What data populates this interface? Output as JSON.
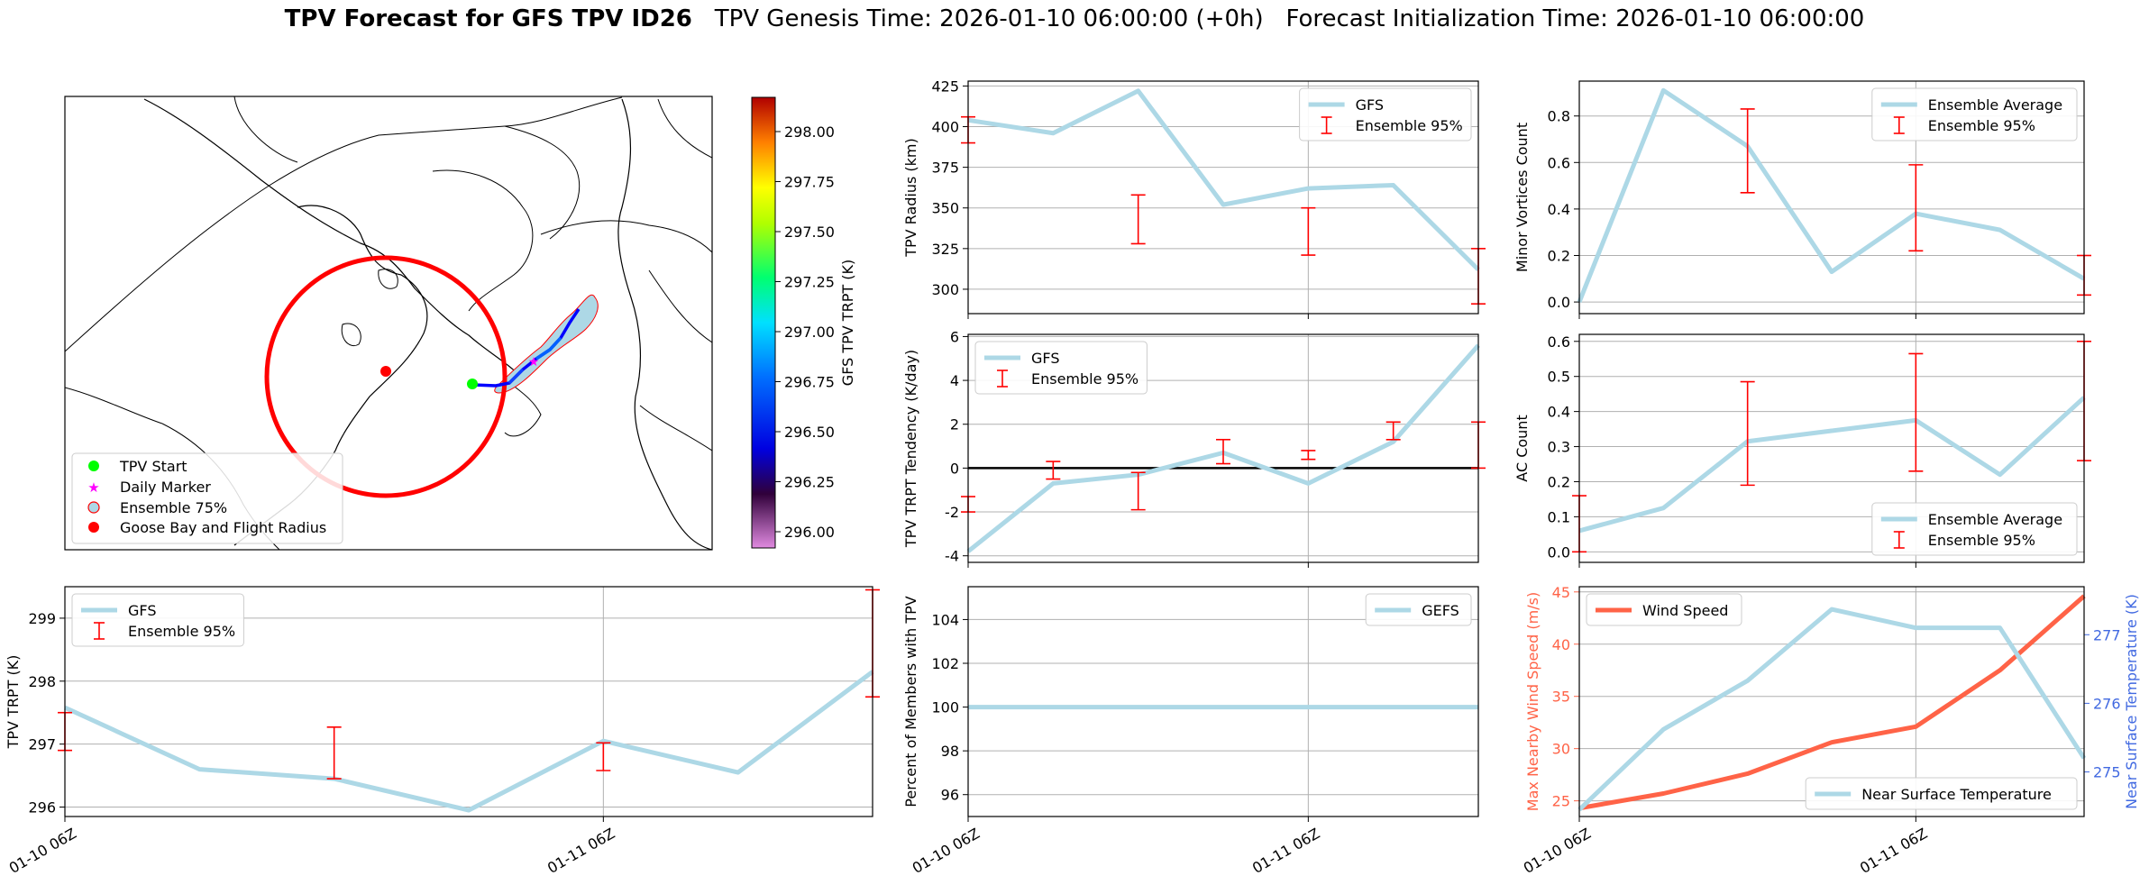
{
  "header": {
    "title_bold": "TPV Forecast for GFS TPV ID26",
    "title_rest": "TPV Genesis Time: 2026-01-10 06:00:00 (+0h)   Forecast Initialization Time: 2026-01-10 06:00:00"
  },
  "colors": {
    "main_line": "#add8e6",
    "errorbar": "#ff0000",
    "wind": "#ff6347",
    "temp_axis": "#4169e1",
    "track": "#0000ff",
    "start": "#00ff00",
    "daily_marker": "#ff00ff",
    "goose_bay": "#ff0000"
  },
  "map": {
    "legend": [
      "TPV Start",
      "Daily Marker",
      "Ensemble 75%",
      "Goose Bay and Flight Radius"
    ],
    "colorbar_label": "GFS TPV TRPT (K)",
    "colorbar_ticks": [
      "298.00",
      "297.75",
      "297.50",
      "297.25",
      "297.00",
      "296.75",
      "296.50",
      "296.25",
      "296.00"
    ]
  },
  "chart_data": [
    {
      "id": "radius",
      "type": "line",
      "ylabel": "TPV Radius (km)",
      "ylim": [
        285,
        428
      ],
      "yticks": [
        "425",
        "400",
        "375",
        "350",
        "325",
        "300"
      ],
      "ytick_values": [
        425,
        400,
        375,
        350,
        325,
        300
      ],
      "x": [
        "01-10 06Z",
        "01-10 12Z",
        "01-10 18Z",
        "01-11 00Z",
        "01-11 06Z",
        "01-11 12Z",
        "01-11 18Z"
      ],
      "series": [
        {
          "name": "GFS",
          "values": [
            404,
            396,
            422,
            352,
            362,
            364,
            312
          ]
        }
      ],
      "errorbars": [
        {
          "x": 0,
          "lo": 390,
          "hi": 406
        },
        {
          "x": 2,
          "lo": 328,
          "hi": 358
        },
        {
          "x": 4,
          "lo": 321,
          "hi": 350
        },
        {
          "x": 6,
          "lo": 291,
          "hi": 325
        }
      ],
      "legend": [
        "GFS",
        "Ensemble 95%"
      ],
      "legend_pos": "top-right"
    },
    {
      "id": "minor_vortices",
      "type": "line",
      "ylabel": "Minor Vortices Count",
      "ylim": [
        -0.05,
        0.95
      ],
      "yticks": [
        "0.8",
        "0.6",
        "0.4",
        "0.2",
        "0.0"
      ],
      "ytick_values": [
        0.8,
        0.6,
        0.4,
        0.2,
        0.0
      ],
      "x": [
        "01-10 06Z",
        "01-10 12Z",
        "01-10 18Z",
        "01-11 00Z",
        "01-11 06Z",
        "01-11 12Z",
        "01-11 18Z"
      ],
      "series": [
        {
          "name": "Ensemble Average",
          "values": [
            0.0,
            0.91,
            0.67,
            0.13,
            0.38,
            0.31,
            0.1
          ]
        }
      ],
      "errorbars": [
        {
          "x": 2,
          "lo": 0.47,
          "hi": 0.83
        },
        {
          "x": 4,
          "lo": 0.22,
          "hi": 0.59
        },
        {
          "x": 6,
          "lo": 0.03,
          "hi": 0.2
        }
      ],
      "legend": [
        "Ensemble Average",
        "Ensemble 95%"
      ],
      "legend_pos": "top-right"
    },
    {
      "id": "tendency",
      "type": "line",
      "ylabel": "TPV TRPT Tendency (K/day)",
      "ylim": [
        -4.3,
        6.1
      ],
      "yticks": [
        "6",
        "4",
        "2",
        "0",
        "-2",
        "-4"
      ],
      "ytick_values": [
        6,
        4,
        2,
        0,
        -2,
        -4
      ],
      "x": [
        "01-10 06Z",
        "01-10 12Z",
        "01-10 18Z",
        "01-11 00Z",
        "01-11 06Z",
        "01-11 12Z",
        "01-11 18Z"
      ],
      "series": [
        {
          "name": "GFS",
          "values": [
            -3.8,
            -0.7,
            -0.3,
            0.7,
            -0.7,
            1.2,
            5.6
          ]
        }
      ],
      "errorbars": [
        {
          "x": 0,
          "lo": -2.0,
          "hi": -1.3
        },
        {
          "x": 1,
          "lo": -0.5,
          "hi": 0.3
        },
        {
          "x": 2,
          "lo": -1.9,
          "hi": -0.2
        },
        {
          "x": 3,
          "lo": 0.2,
          "hi": 1.3
        },
        {
          "x": 4,
          "lo": 0.4,
          "hi": 0.8
        },
        {
          "x": 5,
          "lo": 1.3,
          "hi": 2.1
        },
        {
          "x": 6,
          "lo": 0.0,
          "hi": 2.1
        }
      ],
      "zero_line": true,
      "legend": [
        "GFS",
        "Ensemble 95%"
      ],
      "legend_pos": "top-left"
    },
    {
      "id": "ac_count",
      "type": "line",
      "ylabel": "AC Count",
      "ylim": [
        -0.03,
        0.62
      ],
      "yticks": [
        "0.6",
        "0.5",
        "0.4",
        "0.3",
        "0.2",
        "0.1",
        "0.0"
      ],
      "ytick_values": [
        0.6,
        0.5,
        0.4,
        0.3,
        0.2,
        0.1,
        0.0
      ],
      "x": [
        "01-10 06Z",
        "01-10 12Z",
        "01-10 18Z",
        "01-11 00Z",
        "01-11 06Z",
        "01-11 12Z",
        "01-11 18Z"
      ],
      "series": [
        {
          "name": "Ensemble Average",
          "values": [
            0.06,
            0.125,
            0.315,
            0.345,
            0.375,
            0.22,
            0.44
          ]
        }
      ],
      "errorbars": [
        {
          "x": 0,
          "lo": 0.0,
          "hi": 0.16
        },
        {
          "x": 2,
          "lo": 0.19,
          "hi": 0.485
        },
        {
          "x": 4,
          "lo": 0.23,
          "hi": 0.565
        },
        {
          "x": 6,
          "lo": 0.26,
          "hi": 0.6
        }
      ],
      "legend": [
        "Ensemble Average",
        "Ensemble 95%"
      ],
      "legend_pos": "bottom-right"
    },
    {
      "id": "trpt",
      "type": "line",
      "ylabel": "TPV TRPT (K)",
      "ylim": [
        295.85,
        299.5
      ],
      "yticks": [
        "299",
        "298",
        "297",
        "296"
      ],
      "ytick_values": [
        299,
        298,
        297,
        296
      ],
      "xticks": [
        "01-10 06Z",
        "01-11 06Z"
      ],
      "x": [
        "01-10 06Z",
        "01-10 12Z",
        "01-10 18Z",
        "01-11 00Z",
        "01-11 06Z",
        "01-11 12Z",
        "01-11 18Z"
      ],
      "series": [
        {
          "name": "GFS",
          "values": [
            297.58,
            296.6,
            296.45,
            295.95,
            297.05,
            296.55,
            298.15
          ]
        }
      ],
      "errorbars": [
        {
          "x": 0,
          "lo": 296.9,
          "hi": 297.5
        },
        {
          "x": 2,
          "lo": 296.45,
          "hi": 297.27
        },
        {
          "x": 4,
          "lo": 296.58,
          "hi": 297.02
        },
        {
          "x": 6,
          "lo": 297.75,
          "hi": 299.45
        }
      ],
      "legend": [
        "GFS",
        "Ensemble 95%"
      ],
      "legend_pos": "top-left"
    },
    {
      "id": "percent_members",
      "type": "line",
      "ylabel": "Percent of Members with TPV",
      "ylim": [
        95,
        105.5
      ],
      "yticks": [
        "104",
        "102",
        "100",
        "98",
        "96"
      ],
      "ytick_values": [
        104,
        102,
        100,
        98,
        96
      ],
      "xticks": [
        "01-10 06Z",
        "01-11 06Z"
      ],
      "x": [
        "01-10 06Z",
        "01-10 12Z",
        "01-10 18Z",
        "01-11 00Z",
        "01-11 06Z",
        "01-11 12Z",
        "01-11 18Z"
      ],
      "series": [
        {
          "name": "GEFS",
          "values": [
            100,
            100,
            100,
            100,
            100,
            100,
            100
          ]
        }
      ],
      "legend": [
        "GEFS"
      ],
      "legend_pos": "top-right"
    },
    {
      "id": "wind_temp",
      "type": "line",
      "ylabel": "Max Nearby Wind Speed (m/s)",
      "ylabel_right": "Near Surface Temperature (K)",
      "ylim": [
        23.5,
        45.5
      ],
      "yticks": [
        "45",
        "40",
        "35",
        "30",
        "25"
      ],
      "ytick_values": [
        45,
        40,
        35,
        30,
        25
      ],
      "ylim_right": [
        274.35,
        277.7
      ],
      "yticks_right": [
        "277",
        "276",
        "275"
      ],
      "ytick_values_right": [
        277,
        276,
        275
      ],
      "xticks": [
        "01-10 06Z",
        "01-11 06Z"
      ],
      "x": [
        "01-10 06Z",
        "01-10 12Z",
        "01-10 18Z",
        "01-11 00Z",
        "01-11 06Z",
        "01-11 12Z",
        "01-11 18Z"
      ],
      "series": [
        {
          "name": "Wind Speed",
          "values": [
            24.3,
            25.7,
            27.6,
            30.6,
            32.1,
            37.5,
            44.6
          ],
          "axis": "left"
        },
        {
          "name": "Near Surface Temperature",
          "values": [
            274.45,
            275.62,
            276.33,
            277.37,
            277.1,
            277.1,
            275.2
          ],
          "axis": "right"
        }
      ],
      "legend": [
        "Wind Speed"
      ],
      "legend_right": [
        "Near Surface Temperature"
      ]
    }
  ]
}
